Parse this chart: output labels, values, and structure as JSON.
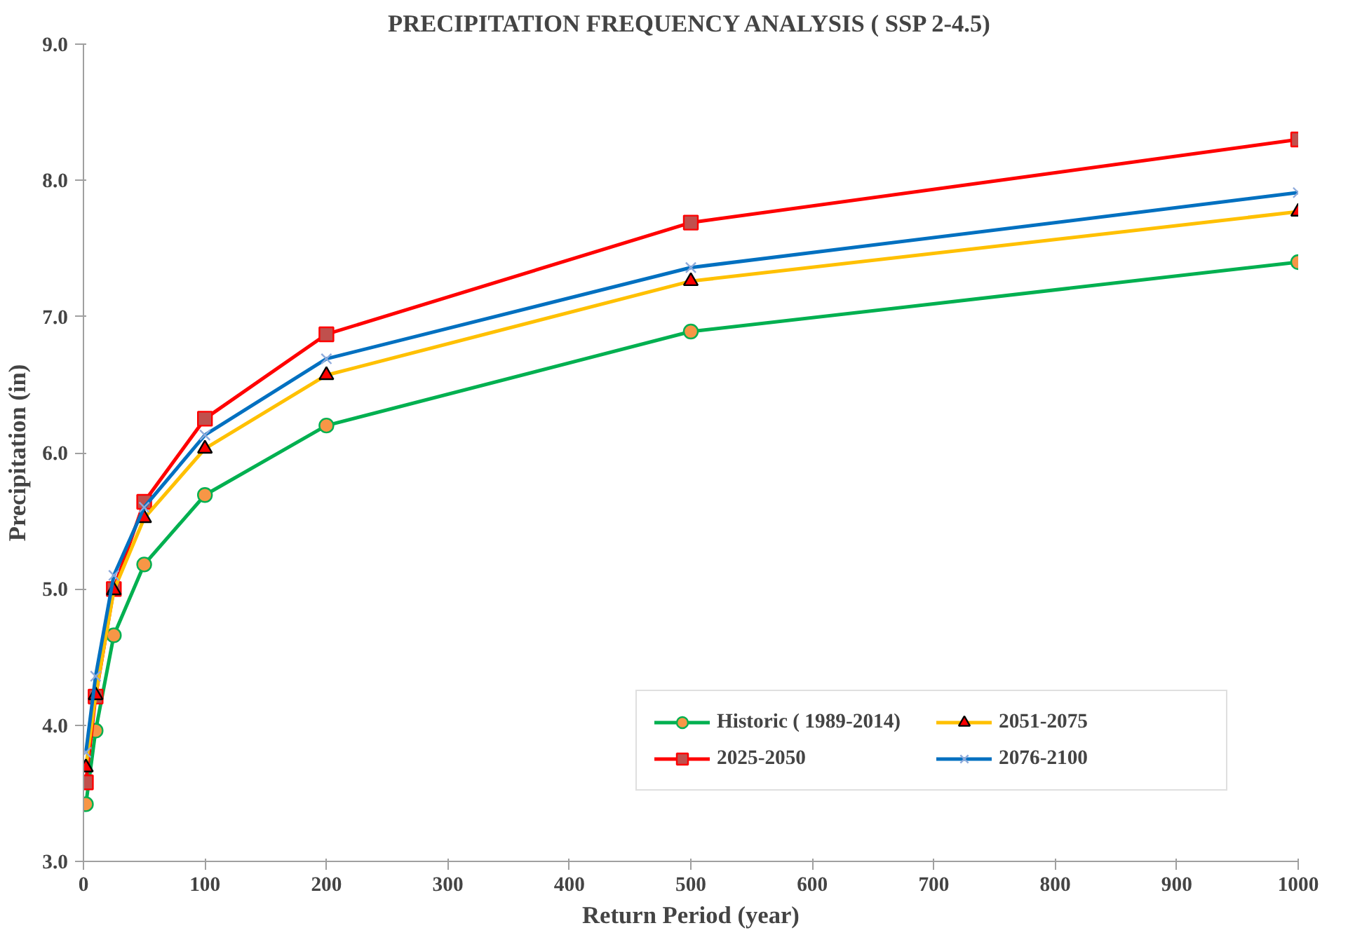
{
  "chart_data": {
    "type": "line",
    "title": "PRECIPITATION FREQUENCY ANALYSIS ( SSP 2-4.5)",
    "xlabel": "Return Period (year)",
    "ylabel": "Precipitation (in)",
    "x": [
      2,
      10,
      25,
      50,
      100,
      200,
      500,
      1000
    ],
    "series": [
      {
        "name": "Historic ( 1989-2014)",
        "color": "#00b050",
        "marker": "circle",
        "values": [
          3.42,
          3.96,
          4.66,
          5.18,
          5.69,
          6.2,
          6.89,
          7.4
        ]
      },
      {
        "name": "2025-2050",
        "color": "#ff0000",
        "marker": "square",
        "values": [
          3.58,
          4.21,
          5.0,
          5.64,
          6.25,
          6.87,
          7.69,
          8.3
        ]
      },
      {
        "name": "2051-2075",
        "color": "#ffc000",
        "marker": "triangle",
        "values": [
          3.69,
          4.22,
          4.99,
          5.52,
          6.03,
          6.57,
          7.26,
          7.77
        ]
      },
      {
        "name": "2076-2100",
        "color": "#0070c0",
        "marker": "cross",
        "values": [
          3.8,
          4.36,
          5.1,
          5.6,
          6.13,
          6.69,
          7.36,
          7.91
        ]
      }
    ],
    "xlim": [
      0,
      1000
    ],
    "xticks": [
      0,
      100,
      200,
      300,
      400,
      500,
      600,
      700,
      800,
      900,
      1000
    ],
    "ylim": [
      3,
      9
    ],
    "yticks": [
      {
        "value": 3,
        "label": "3.0"
      },
      {
        "value": 4,
        "label": "4.0"
      },
      {
        "value": 5,
        "label": "5.0"
      },
      {
        "value": 6,
        "label": "6.0"
      },
      {
        "value": 7,
        "label": "7.0"
      },
      {
        "value": 8,
        "label": "8.0"
      },
      {
        "value": 9,
        "label": "9.0"
      }
    ],
    "grid": false,
    "legend": "bottom right",
    "line_style": "solid"
  }
}
